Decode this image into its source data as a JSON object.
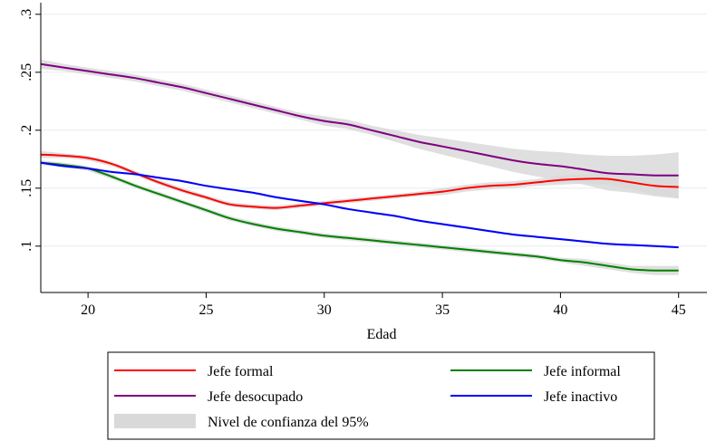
{
  "chart_data": {
    "type": "line",
    "xlabel": "Edad",
    "ylabel": "",
    "xlim": [
      18,
      46.2
    ],
    "ylim": [
      0.06,
      0.31
    ],
    "xticks": [
      20,
      25,
      30,
      35,
      40,
      45
    ],
    "xtick_labels": [
      "20",
      "25",
      "30",
      "35",
      "40",
      "45"
    ],
    "yticks": [
      0.1,
      0.15,
      0.2,
      0.25,
      0.3
    ],
    "ytick_labels": [
      ".1",
      ".15",
      ".2",
      ".25",
      ".3"
    ],
    "grid": "horizontal",
    "legend_position": "bottom",
    "series": [
      {
        "name": "Jefe formal",
        "color": "#ff0000",
        "x": [
          18,
          19,
          20,
          21,
          22,
          23,
          24,
          25,
          26,
          27,
          28,
          29,
          30,
          31,
          32,
          33,
          34,
          35,
          36,
          37,
          38,
          39,
          40,
          41,
          42,
          43,
          44,
          45
        ],
        "y": [
          0.179,
          0.178,
          0.176,
          0.171,
          0.163,
          0.155,
          0.148,
          0.142,
          0.136,
          0.134,
          0.133,
          0.135,
          0.137,
          0.139,
          0.141,
          0.143,
          0.145,
          0.147,
          0.15,
          0.152,
          0.153,
          0.155,
          0.157,
          0.158,
          0.158,
          0.155,
          0.152,
          0.151
        ],
        "ci_half_width": [
          0.003,
          0.002,
          0.002,
          0.002,
          0.002,
          0.002,
          0.002,
          0.002,
          0.002,
          0.002,
          0.002,
          0.002,
          0.002,
          0.002,
          0.002,
          0.002,
          0.002,
          0.003,
          0.003,
          0.003,
          0.003,
          0.003,
          0.004,
          0.004,
          0.005,
          0.006,
          0.008,
          0.01
        ]
      },
      {
        "name": "Jefe informal",
        "color": "#008000",
        "x": [
          18,
          19,
          20,
          21,
          22,
          23,
          24,
          25,
          26,
          27,
          28,
          29,
          30,
          31,
          32,
          33,
          34,
          35,
          36,
          37,
          38,
          39,
          40,
          41,
          42,
          43,
          44,
          45
        ],
        "y": [
          0.172,
          0.17,
          0.167,
          0.16,
          0.152,
          0.145,
          0.138,
          0.131,
          0.124,
          0.119,
          0.115,
          0.112,
          0.109,
          0.107,
          0.105,
          0.103,
          0.101,
          0.099,
          0.097,
          0.095,
          0.093,
          0.091,
          0.088,
          0.086,
          0.083,
          0.08,
          0.079,
          0.079
        ],
        "ci_half_width": [
          0.002,
          0.002,
          0.002,
          0.002,
          0.002,
          0.002,
          0.002,
          0.002,
          0.002,
          0.002,
          0.002,
          0.002,
          0.002,
          0.002,
          0.002,
          0.002,
          0.002,
          0.002,
          0.002,
          0.002,
          0.002,
          0.002,
          0.002,
          0.003,
          0.003,
          0.003,
          0.004,
          0.004
        ]
      },
      {
        "name": "Jefe desocupado",
        "color": "#800080",
        "x": [
          18,
          19,
          20,
          21,
          22,
          23,
          24,
          25,
          26,
          27,
          28,
          29,
          30,
          31,
          32,
          33,
          34,
          35,
          36,
          37,
          38,
          39,
          40,
          41,
          42,
          43,
          44,
          45
        ],
        "y": [
          0.257,
          0.254,
          0.251,
          0.248,
          0.245,
          0.241,
          0.237,
          0.232,
          0.227,
          0.222,
          0.217,
          0.212,
          0.208,
          0.205,
          0.2,
          0.195,
          0.19,
          0.186,
          0.182,
          0.178,
          0.174,
          0.171,
          0.169,
          0.166,
          0.163,
          0.162,
          0.161,
          0.161
        ],
        "ci_half_width": [
          0.004,
          0.003,
          0.003,
          0.003,
          0.003,
          0.003,
          0.003,
          0.003,
          0.003,
          0.003,
          0.003,
          0.003,
          0.004,
          0.004,
          0.004,
          0.005,
          0.006,
          0.007,
          0.008,
          0.009,
          0.01,
          0.011,
          0.012,
          0.013,
          0.015,
          0.016,
          0.018,
          0.02
        ]
      },
      {
        "name": "Jefe inactivo",
        "color": "#0000ff",
        "x": [
          18,
          19,
          20,
          21,
          22,
          23,
          24,
          25,
          26,
          27,
          28,
          29,
          30,
          31,
          32,
          33,
          34,
          35,
          36,
          37,
          38,
          39,
          40,
          41,
          42,
          43,
          44,
          45
        ],
        "y": [
          0.172,
          0.169,
          0.167,
          0.164,
          0.162,
          0.159,
          0.156,
          0.152,
          0.149,
          0.146,
          0.142,
          0.139,
          0.136,
          0.132,
          0.129,
          0.126,
          0.122,
          0.119,
          0.116,
          0.113,
          0.11,
          0.108,
          0.106,
          0.104,
          0.102,
          0.101,
          0.1,
          0.099
        ],
        "ci_half_width": [
          0.001,
          0.001,
          0.001,
          0.001,
          0.001,
          0.001,
          0.001,
          0.001,
          0.001,
          0.001,
          0.001,
          0.001,
          0.001,
          0.001,
          0.001,
          0.001,
          0.001,
          0.001,
          0.001,
          0.001,
          0.001,
          0.001,
          0.001,
          0.001,
          0.001,
          0.001,
          0.001,
          0.001
        ]
      }
    ],
    "legend": [
      {
        "label": "Jefe formal",
        "kind": "line",
        "color": "#ff0000"
      },
      {
        "label": "Jefe informal",
        "kind": "line",
        "color": "#008000"
      },
      {
        "label": "Jefe desocupado",
        "kind": "line",
        "color": "#800080"
      },
      {
        "label": "Jefe inactivo",
        "kind": "line",
        "color": "#0000ff"
      },
      {
        "label": "Nivel de confianza del 95%",
        "kind": "band",
        "color": "#d9d9d9"
      }
    ],
    "ci_color": "#d9d9d9",
    "grid_color": "#e6eef0"
  }
}
